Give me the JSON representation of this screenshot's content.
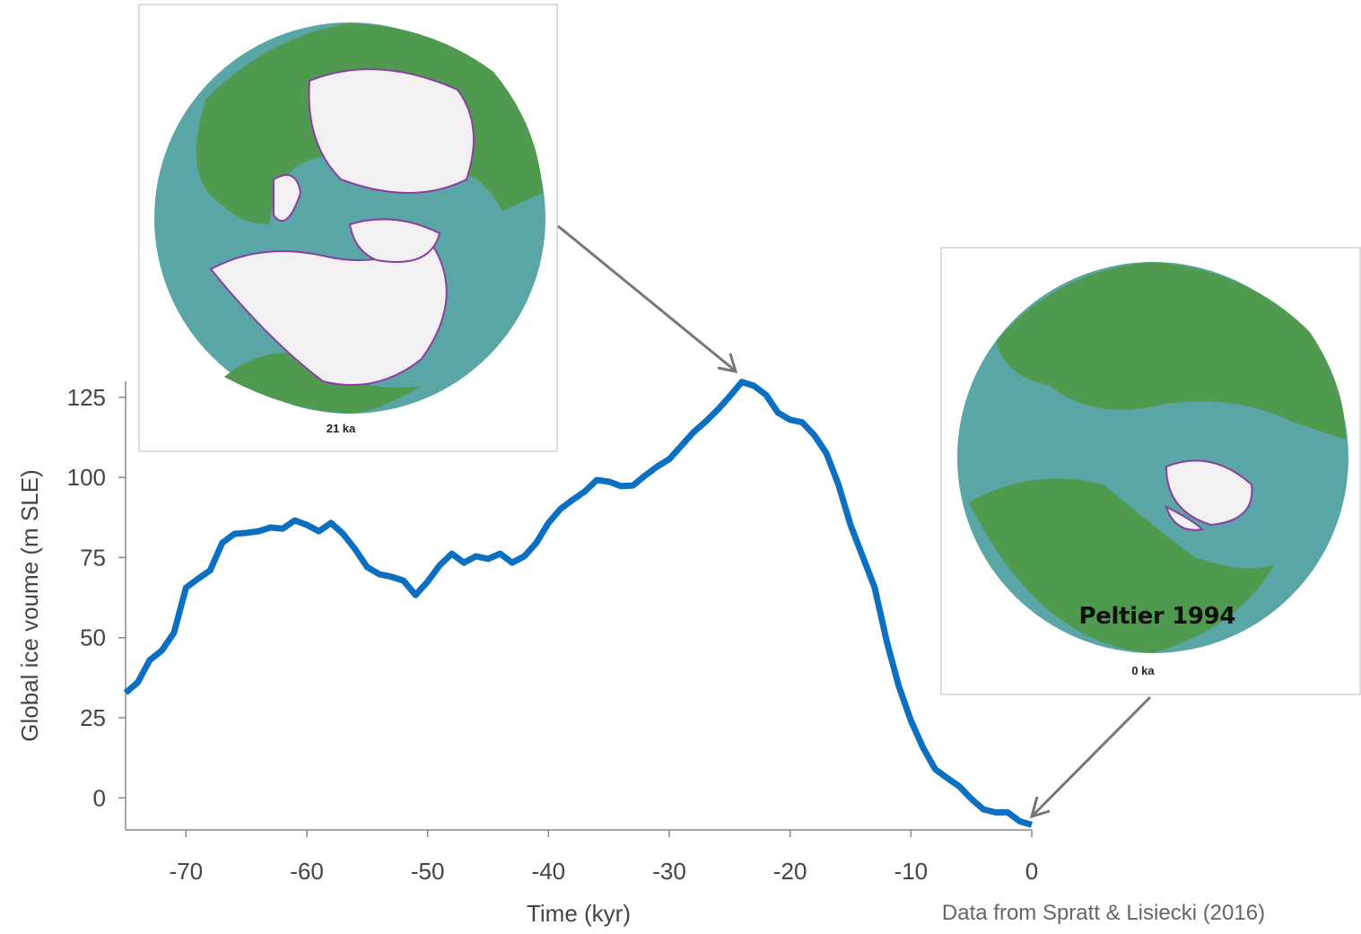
{
  "chart_data": {
    "type": "line",
    "x_label": "Time (kyr)",
    "y_label": "Global ice voume (m SLE)",
    "x": [
      -75,
      -74,
      -73,
      -72,
      -71,
      -70,
      -69,
      -68,
      -67,
      -66,
      -65,
      -64,
      -63,
      -62,
      -61,
      -60,
      -59,
      -58,
      -57,
      -56,
      -55,
      -54,
      -53,
      -52,
      -51,
      -50,
      -49,
      -48,
      -47,
      -46,
      -45,
      -44,
      -43,
      -42,
      -41,
      -40,
      -39,
      -38,
      -37,
      -36,
      -35,
      -34,
      -33,
      -32,
      -31,
      -30,
      -29,
      -28,
      -27,
      -26,
      -25,
      -24,
      -23,
      -22,
      -21,
      -20,
      -19,
      -18,
      -17,
      -16,
      -15,
      -14,
      -13,
      -12,
      -11,
      -10,
      -9,
      -8,
      -7,
      -6,
      -5,
      -4,
      -3,
      -2,
      -1,
      0
    ],
    "series": [
      {
        "color": "#0b6fc2",
        "values": [
          32.8,
          36,
          43,
          46,
          51.5,
          65.6,
          68.4,
          71,
          79.6,
          82.4,
          82.7,
          83.2,
          84.4,
          84,
          86.6,
          85.2,
          83.2,
          85.8,
          82.4,
          77.6,
          72,
          69.8,
          69,
          67.8,
          63.3,
          67.5,
          72.6,
          76.2,
          73.4,
          75.4,
          74.6,
          76.2,
          73.4,
          75.4,
          79.6,
          85.8,
          90.2,
          93,
          95.6,
          99.2,
          98.7,
          97.3,
          97.5,
          100.6,
          103.4,
          105.7,
          109.9,
          114.1,
          117.4,
          121.1,
          125.3,
          129.8,
          128.6,
          125.8,
          120.2,
          118,
          117.2,
          113.2,
          107.6,
          97.8,
          85.2,
          75.4,
          65.6,
          48.8,
          34.8,
          24.1,
          15.7,
          9,
          6.2,
          3.6,
          -0.3,
          -3.6,
          -4.5,
          -4.5,
          -7.3,
          -8.4
        ]
      }
    ],
    "xlim": [
      -75,
      0
    ],
    "xticks": [
      -70,
      -60,
      -50,
      -40,
      -30,
      -20,
      -10,
      0
    ],
    "ylim": [
      -10,
      130
    ],
    "yticks": [
      0,
      25,
      50,
      75,
      100,
      125
    ],
    "annotations": [
      "21 ka",
      "0 ka",
      "Peltier 1994"
    ],
    "source": "Data from Spratt & Lisiecki (2016)"
  }
}
